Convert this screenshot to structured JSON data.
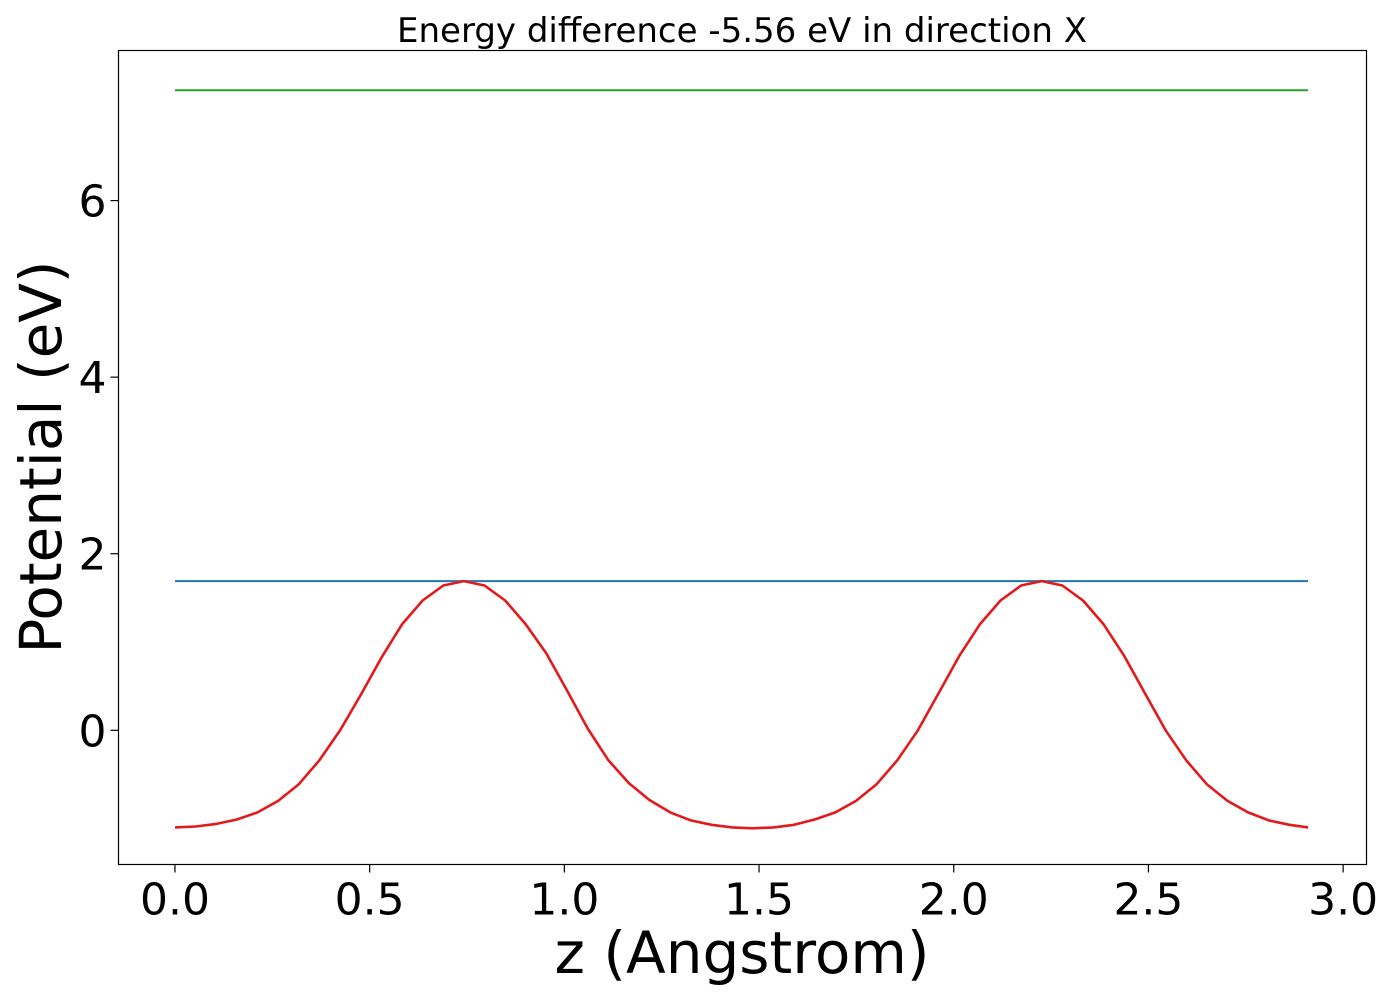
{
  "chart_data": {
    "type": "line",
    "title": "Energy difference -5.56 eV in direction X",
    "xlabel": "z (Angstrom)",
    "ylabel": "Potential (eV)",
    "xlim": [
      -0.145,
      3.06
    ],
    "ylim": [
      -1.52,
      7.7
    ],
    "x_ticks": [
      0.0,
      0.5,
      1.0,
      1.5,
      2.0,
      2.5,
      3.0
    ],
    "x_tick_labels": [
      "0.0",
      "0.5",
      "1.0",
      "1.5",
      "2.0",
      "2.5",
      "3.0"
    ],
    "y_ticks": [
      0,
      2,
      4,
      6
    ],
    "y_tick_labels": [
      "0",
      "2",
      "4",
      "6"
    ],
    "grid": false,
    "legend": "none",
    "series": [
      {
        "color": "#2ca02c",
        "x": [
          0.0,
          2.91
        ],
        "y": [
          7.25,
          7.25
        ]
      },
      {
        "color": "#1f77b4",
        "x": [
          0.0,
          2.91
        ],
        "y": [
          1.69,
          1.69
        ]
      },
      {
        "color": "#e31a1c",
        "x": [
          0.0,
          0.053,
          0.106,
          0.159,
          0.212,
          0.265,
          0.318,
          0.371,
          0.424,
          0.477,
          0.53,
          0.583,
          0.636,
          0.689,
          0.742,
          0.795,
          0.848,
          0.901,
          0.954,
          1.007,
          1.06,
          1.113,
          1.166,
          1.219,
          1.272,
          1.325,
          1.378,
          1.431,
          1.484,
          1.537,
          1.59,
          1.643,
          1.696,
          1.749,
          1.802,
          1.855,
          1.908,
          1.961,
          2.014,
          2.067,
          2.12,
          2.173,
          2.226,
          2.279,
          2.332,
          2.385,
          2.438,
          2.491,
          2.544,
          2.597,
          2.65,
          2.703,
          2.756,
          2.809,
          2.862,
          2.91
        ],
        "y": [
          -1.1,
          -1.09,
          -1.06,
          -1.01,
          -0.93,
          -0.8,
          -0.61,
          -0.34,
          0.0,
          0.4,
          0.82,
          1.2,
          1.47,
          1.64,
          1.69,
          1.64,
          1.47,
          1.2,
          0.87,
          0.45,
          0.02,
          -0.34,
          -0.6,
          -0.79,
          -0.93,
          -1.02,
          -1.07,
          -1.1,
          -1.11,
          -1.1,
          -1.07,
          -1.01,
          -0.93,
          -0.8,
          -0.61,
          -0.34,
          0.0,
          0.42,
          0.84,
          1.2,
          1.47,
          1.64,
          1.69,
          1.64,
          1.47,
          1.2,
          0.84,
          0.42,
          0.0,
          -0.34,
          -0.61,
          -0.8,
          -0.93,
          -1.02,
          -1.07,
          -1.1
        ]
      }
    ]
  }
}
